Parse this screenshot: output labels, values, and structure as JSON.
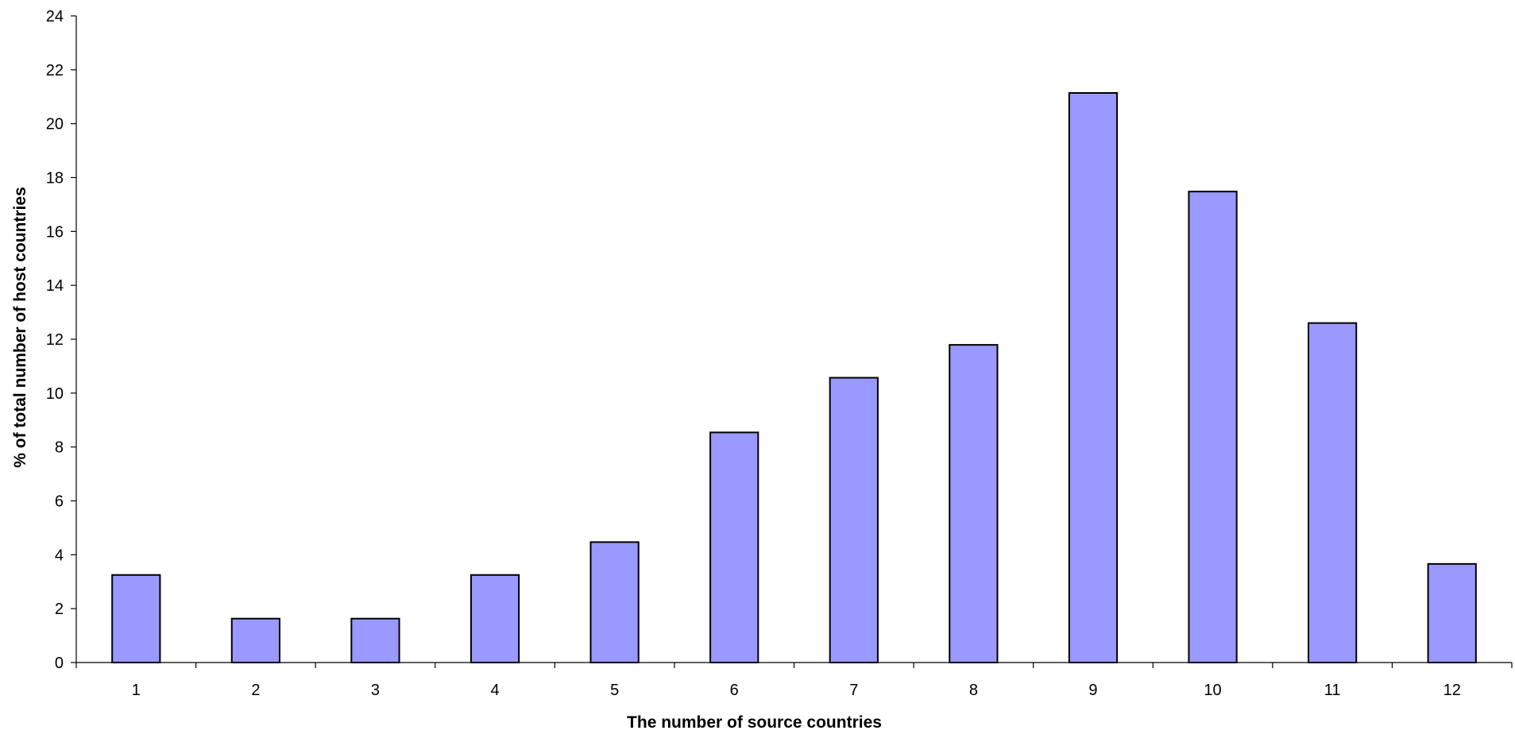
{
  "chart_data": {
    "type": "bar",
    "categories": [
      "1",
      "2",
      "3",
      "4",
      "5",
      "6",
      "7",
      "8",
      "9",
      "10",
      "11",
      "12"
    ],
    "values": [
      3.25,
      1.63,
      1.63,
      3.25,
      4.47,
      8.54,
      10.57,
      11.79,
      21.14,
      17.48,
      12.6,
      3.66
    ],
    "title": "",
    "xlabel": "The number of source countries",
    "ylabel": "% of total number of host countries",
    "ylim": [
      0,
      24
    ],
    "y_ticks": [
      "0",
      "2",
      "4",
      "6",
      "8",
      "10",
      "12",
      "14",
      "16",
      "18",
      "20",
      "22",
      "24"
    ],
    "grid": false,
    "legend": "none",
    "colors": {
      "bar_fill": "#9999ff",
      "bar_stroke": "#000000",
      "axis": "#000000",
      "text": "#000000"
    }
  }
}
